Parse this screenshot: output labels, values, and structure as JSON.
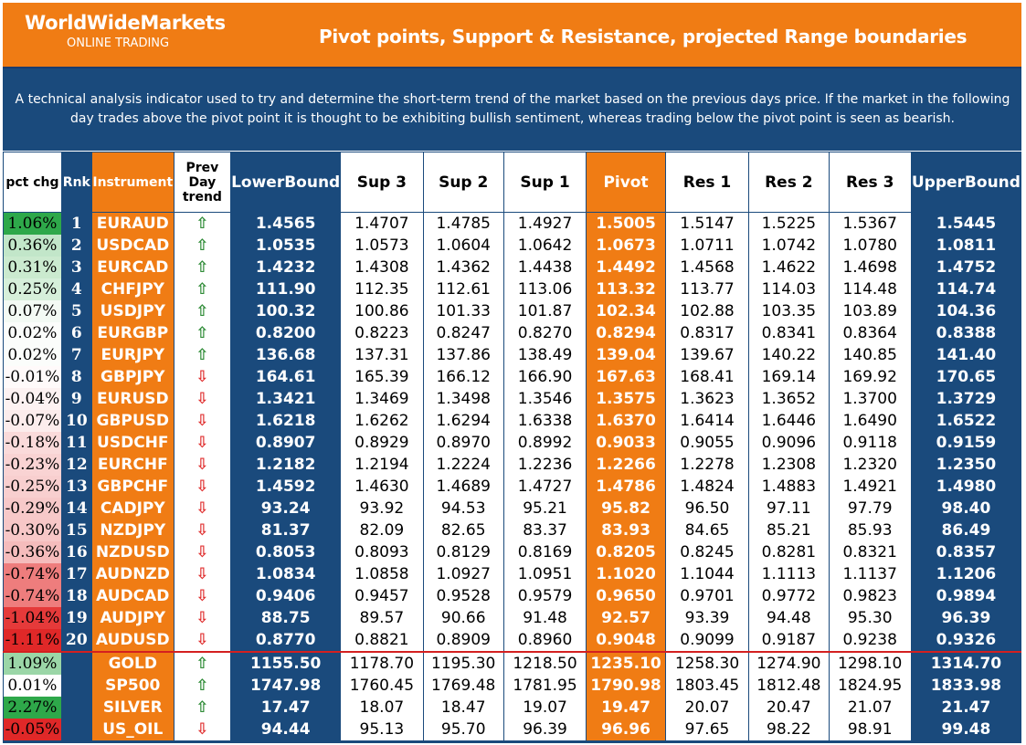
{
  "header": {
    "brand": "WorldWideMarkets",
    "subtitle": "ONLINE TRADING",
    "title": "Pivot points, Support & Resistance, projected Range boundaries"
  },
  "description": "A technical analysis indicator used to try and determine the short-term trend of the market based on the previous days price. If the market in the following day trades above the pivot point it is thought to be exhibiting bullish sentiment, whereas trading below the pivot point is seen as bearish.",
  "columns": {
    "pct": "pct chg",
    "rank": "Rnk",
    "instrument": "Instrument",
    "trend": "Prev Day trend",
    "lower": "LowerBound",
    "sup3": "Sup 3",
    "sup2": "Sup 2",
    "sup1": "Sup 1",
    "pivot": "Pivot",
    "res1": "Res 1",
    "res2": "Res 2",
    "res3": "Res 3",
    "upper": "UpperBound"
  },
  "colors": {
    "header_orange": "#f07c14",
    "navy": "#1a4a7c",
    "up_arrow": "#2e8b36",
    "down_arrow": "#e03030",
    "separator": "#d42020"
  },
  "icons": {
    "up": "up-arrow-icon",
    "down": "down-arrow-icon"
  },
  "rows": [
    {
      "pct": "1.06%",
      "rank": "1",
      "inst": "EURAUD",
      "trend": "up",
      "lower": "1.4565",
      "sup3": "1.4707",
      "sup2": "1.4785",
      "sup1": "1.4927",
      "pivot": "1.5005",
      "res1": "1.5147",
      "res2": "1.5225",
      "res3": "1.5367",
      "upper": "1.5445",
      "bg": "#2ea84a"
    },
    {
      "pct": "0.36%",
      "rank": "2",
      "inst": "USDCAD",
      "trend": "up",
      "lower": "1.0535",
      "sup3": "1.0573",
      "sup2": "1.0604",
      "sup1": "1.0642",
      "pivot": "1.0673",
      "res1": "1.0711",
      "res2": "1.0742",
      "res3": "1.0780",
      "upper": "1.0811",
      "bg": "#c2e6c9"
    },
    {
      "pct": "0.31%",
      "rank": "3",
      "inst": "EURCAD",
      "trend": "up",
      "lower": "1.4232",
      "sup3": "1.4308",
      "sup2": "1.4362",
      "sup1": "1.4438",
      "pivot": "1.4492",
      "res1": "1.4568",
      "res2": "1.4622",
      "res3": "1.4698",
      "upper": "1.4752",
      "bg": "#cbeacf"
    },
    {
      "pct": "0.25%",
      "rank": "4",
      "inst": "CHFJPY",
      "trend": "up",
      "lower": "111.90",
      "sup3": "112.35",
      "sup2": "112.61",
      "sup1": "113.06",
      "pivot": "113.32",
      "res1": "113.77",
      "res2": "114.03",
      "res3": "114.48",
      "upper": "114.74",
      "bg": "#d6efda"
    },
    {
      "pct": "0.07%",
      "rank": "5",
      "inst": "USDJPY",
      "trend": "up",
      "lower": "100.32",
      "sup3": "100.86",
      "sup2": "101.33",
      "sup1": "101.87",
      "pivot": "102.34",
      "res1": "102.88",
      "res2": "103.35",
      "res3": "103.89",
      "upper": "104.36",
      "bg": "#f3faf4"
    },
    {
      "pct": "0.02%",
      "rank": "6",
      "inst": "EURGBP",
      "trend": "up",
      "lower": "0.8200",
      "sup3": "0.8223",
      "sup2": "0.8247",
      "sup1": "0.8270",
      "pivot": "0.8294",
      "res1": "0.8317",
      "res2": "0.8341",
      "res3": "0.8364",
      "upper": "0.8388",
      "bg": "#fbfdfb"
    },
    {
      "pct": "0.02%",
      "rank": "7",
      "inst": "EURJPY",
      "trend": "up",
      "lower": "136.68",
      "sup3": "137.31",
      "sup2": "137.86",
      "sup1": "138.49",
      "pivot": "139.04",
      "res1": "139.67",
      "res2": "140.22",
      "res3": "140.85",
      "upper": "141.40",
      "bg": "#fbfdfb"
    },
    {
      "pct": "-0.01%",
      "rank": "8",
      "inst": "GBPJPY",
      "trend": "down",
      "lower": "164.61",
      "sup3": "165.39",
      "sup2": "166.12",
      "sup1": "166.90",
      "pivot": "167.63",
      "res1": "168.41",
      "res2": "169.14",
      "res3": "169.92",
      "upper": "170.65",
      "bg": "#fffafa"
    },
    {
      "pct": "-0.04%",
      "rank": "9",
      "inst": "EURUSD",
      "trend": "down",
      "lower": "1.3421",
      "sup3": "1.3469",
      "sup2": "1.3498",
      "sup1": "1.3546",
      "pivot": "1.3575",
      "res1": "1.3623",
      "res2": "1.3652",
      "res3": "1.3700",
      "upper": "1.3729",
      "bg": "#fdf2f2"
    },
    {
      "pct": "-0.07%",
      "rank": "10",
      "inst": "GBPUSD",
      "trend": "down",
      "lower": "1.6218",
      "sup3": "1.6262",
      "sup2": "1.6294",
      "sup1": "1.6338",
      "pivot": "1.6370",
      "res1": "1.6414",
      "res2": "1.6446",
      "res3": "1.6490",
      "upper": "1.6522",
      "bg": "#fcecec"
    },
    {
      "pct": "-0.18%",
      "rank": "11",
      "inst": "USDCHF",
      "trend": "down",
      "lower": "0.8907",
      "sup3": "0.8929",
      "sup2": "0.8970",
      "sup1": "0.8992",
      "pivot": "0.9033",
      "res1": "0.9055",
      "res2": "0.9096",
      "res3": "0.9118",
      "upper": "0.9159",
      "bg": "#fadada"
    },
    {
      "pct": "-0.23%",
      "rank": "12",
      "inst": "EURCHF",
      "trend": "down",
      "lower": "1.2182",
      "sup3": "1.2194",
      "sup2": "1.2224",
      "sup1": "1.2236",
      "pivot": "1.2266",
      "res1": "1.2278",
      "res2": "1.2308",
      "res3": "1.2320",
      "upper": "1.2350",
      "bg": "#f9d3d3"
    },
    {
      "pct": "-0.25%",
      "rank": "13",
      "inst": "GBPCHF",
      "trend": "down",
      "lower": "1.4592",
      "sup3": "1.4630",
      "sup2": "1.4689",
      "sup1": "1.4727",
      "pivot": "1.4786",
      "res1": "1.4824",
      "res2": "1.4883",
      "res3": "1.4921",
      "upper": "1.4980",
      "bg": "#f8cfcf"
    },
    {
      "pct": "-0.29%",
      "rank": "14",
      "inst": "CADJPY",
      "trend": "down",
      "lower": "93.24",
      "sup3": "93.92",
      "sup2": "94.53",
      "sup1": "95.21",
      "pivot": "95.82",
      "res1": "96.50",
      "res2": "97.11",
      "res3": "97.79",
      "upper": "98.40",
      "bg": "#f7c9c9"
    },
    {
      "pct": "-0.30%",
      "rank": "15",
      "inst": "NZDJPY",
      "trend": "down",
      "lower": "81.37",
      "sup3": "82.09",
      "sup2": "82.65",
      "sup1": "83.37",
      "pivot": "83.93",
      "res1": "84.65",
      "res2": "85.21",
      "res3": "85.93",
      "upper": "86.49",
      "bg": "#f7c7c7"
    },
    {
      "pct": "-0.36%",
      "rank": "16",
      "inst": "NZDUSD",
      "trend": "down",
      "lower": "0.8053",
      "sup3": "0.8093",
      "sup2": "0.8129",
      "sup1": "0.8169",
      "pivot": "0.8205",
      "res1": "0.8245",
      "res2": "0.8281",
      "res3": "0.8321",
      "upper": "0.8357",
      "bg": "#f5bcbc"
    },
    {
      "pct": "-0.74%",
      "rank": "17",
      "inst": "AUDNZD",
      "trend": "down",
      "lower": "1.0834",
      "sup3": "1.0858",
      "sup2": "1.0927",
      "sup1": "1.0951",
      "pivot": "1.1020",
      "res1": "1.1044",
      "res2": "1.1113",
      "res3": "1.1137",
      "upper": "1.1206",
      "bg": "#ee7d7d"
    },
    {
      "pct": "-0.74%",
      "rank": "18",
      "inst": "AUDCAD",
      "trend": "down",
      "lower": "0.9406",
      "sup3": "0.9457",
      "sup2": "0.9528",
      "sup1": "0.9579",
      "pivot": "0.9650",
      "res1": "0.9701",
      "res2": "0.9772",
      "res3": "0.9823",
      "upper": "0.9894",
      "bg": "#ee7d7d"
    },
    {
      "pct": "-1.04%",
      "rank": "19",
      "inst": "AUDJPY",
      "trend": "down",
      "lower": "88.75",
      "sup3": "89.57",
      "sup2": "90.66",
      "sup1": "91.48",
      "pivot": "92.57",
      "res1": "93.39",
      "res2": "94.48",
      "res3": "95.30",
      "upper": "96.39",
      "bg": "#e53a3a"
    },
    {
      "pct": "-1.11%",
      "rank": "20",
      "inst": "AUDUSD",
      "trend": "down",
      "lower": "0.8770",
      "sup3": "0.8821",
      "sup2": "0.8909",
      "sup1": "0.8960",
      "pivot": "0.9048",
      "res1": "0.9099",
      "res2": "0.9187",
      "res3": "0.9238",
      "upper": "0.9326",
      "bg": "#e02828"
    },
    {
      "pct": "1.09%",
      "rank": "",
      "inst": "GOLD",
      "trend": "up",
      "lower": "1155.50",
      "sup3": "1178.70",
      "sup2": "1195.30",
      "sup1": "1218.50",
      "pivot": "1235.10",
      "res1": "1258.30",
      "res2": "1274.90",
      "res3": "1298.10",
      "upper": "1314.70",
      "bg": "#9bd6a7"
    },
    {
      "pct": "0.01%",
      "rank": "",
      "inst": "SP500",
      "trend": "up",
      "lower": "1747.98",
      "sup3": "1760.45",
      "sup2": "1769.48",
      "sup1": "1781.95",
      "pivot": "1790.98",
      "res1": "1803.45",
      "res2": "1812.48",
      "res3": "1824.95",
      "upper": "1833.98",
      "bg": "#ffffff"
    },
    {
      "pct": "2.27%",
      "rank": "",
      "inst": "SILVER",
      "trend": "up",
      "lower": "17.47",
      "sup3": "18.07",
      "sup2": "18.47",
      "sup1": "19.07",
      "pivot": "19.47",
      "res1": "20.07",
      "res2": "20.47",
      "res3": "21.07",
      "upper": "21.47",
      "bg": "#2ea84a"
    },
    {
      "pct": "-0.05%",
      "rank": "",
      "inst": "US_OIL",
      "trend": "down",
      "lower": "94.44",
      "sup3": "95.13",
      "sup2": "95.70",
      "sup1": "96.39",
      "pivot": "96.96",
      "res1": "97.65",
      "res2": "98.22",
      "res3": "98.91",
      "upper": "99.48",
      "bg": "#e02828"
    }
  ]
}
